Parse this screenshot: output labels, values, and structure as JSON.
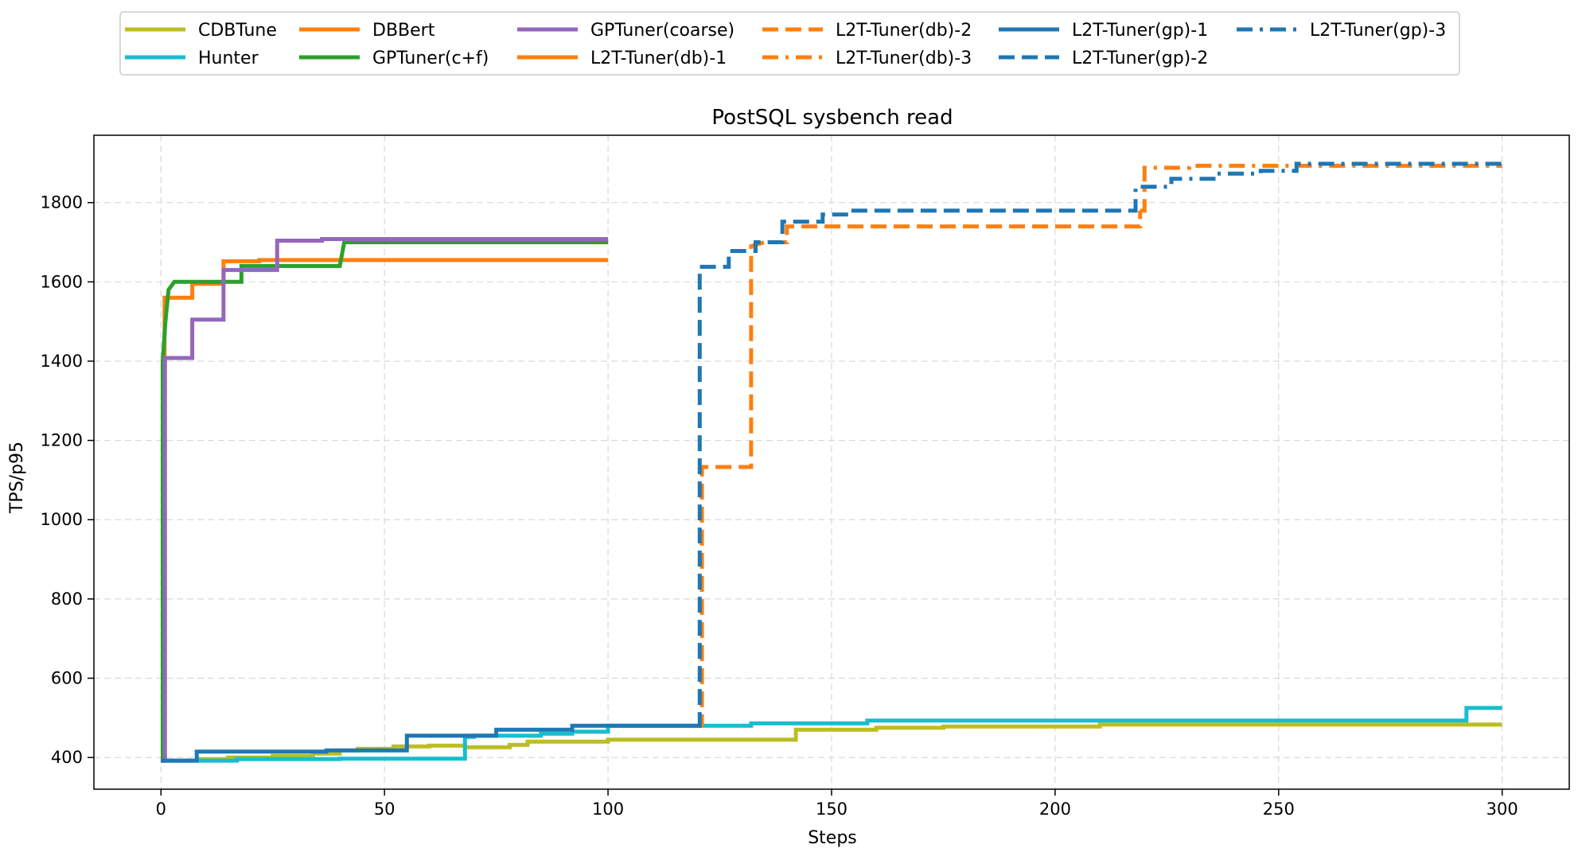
{
  "chart_data": {
    "type": "line",
    "title": "PostSQL sysbench read",
    "xlabel": "Steps",
    "ylabel": "TPS/p95",
    "xlim": [
      -15,
      315
    ],
    "ylim": [
      320,
      1970
    ],
    "xticks": [
      0,
      50,
      100,
      150,
      200,
      250,
      300
    ],
    "yticks": [
      400,
      600,
      800,
      1000,
      1200,
      1400,
      1600,
      1800
    ],
    "grid": true,
    "legend_position": "top-center",
    "series": [
      {
        "name": "CDBTune",
        "color": "#bcbd22",
        "dash": "solid",
        "points": [
          [
            0,
            392
          ],
          [
            8,
            392
          ],
          [
            8,
            396
          ],
          [
            15,
            396
          ],
          [
            15,
            400
          ],
          [
            25,
            400
          ],
          [
            25,
            404
          ],
          [
            34,
            404
          ],
          [
            34,
            410
          ],
          [
            40,
            410
          ],
          [
            40,
            418
          ],
          [
            44,
            418
          ],
          [
            44,
            422
          ],
          [
            52,
            422
          ],
          [
            52,
            428
          ],
          [
            60,
            428
          ],
          [
            60,
            430
          ],
          [
            68,
            430
          ],
          [
            68,
            426
          ],
          [
            78,
            426
          ],
          [
            78,
            432
          ],
          [
            82,
            432
          ],
          [
            82,
            440
          ],
          [
            100,
            440
          ],
          [
            100,
            445
          ],
          [
            142,
            445
          ],
          [
            142,
            470
          ],
          [
            160,
            470
          ],
          [
            160,
            475
          ],
          [
            175,
            475
          ],
          [
            175,
            478
          ],
          [
            210,
            478
          ],
          [
            210,
            483
          ],
          [
            300,
            483
          ]
        ]
      },
      {
        "name": "Hunter",
        "color": "#17becf",
        "dash": "solid",
        "points": [
          [
            0,
            392
          ],
          [
            17,
            392
          ],
          [
            17,
            396
          ],
          [
            40,
            396
          ],
          [
            40,
            397
          ],
          [
            68,
            397
          ],
          [
            68,
            452
          ],
          [
            70,
            452
          ],
          [
            70,
            455
          ],
          [
            85,
            455
          ],
          [
            85,
            460
          ],
          [
            92,
            460
          ],
          [
            92,
            465
          ],
          [
            100,
            465
          ],
          [
            100,
            480
          ],
          [
            132,
            480
          ],
          [
            132,
            486
          ],
          [
            158,
            486
          ],
          [
            158,
            493
          ],
          [
            292,
            493
          ],
          [
            292,
            525
          ],
          [
            300,
            525
          ]
        ]
      },
      {
        "name": "DBBert",
        "color": "#ff7f0e",
        "dash": "solid",
        "points": [
          [
            0,
            392
          ],
          [
            0.8,
            392
          ],
          [
            0.8,
            1560
          ],
          [
            7,
            1560
          ],
          [
            7,
            1595
          ],
          [
            14,
            1595
          ],
          [
            14,
            1652
          ],
          [
            22,
            1652
          ],
          [
            22,
            1655
          ],
          [
            100,
            1655
          ]
        ]
      },
      {
        "name": "GPTuner(c+f)",
        "color": "#2ca02c",
        "dash": "solid",
        "points": [
          [
            0,
            392
          ],
          [
            0.4,
            392
          ],
          [
            0.4,
            1400
          ],
          [
            1,
            1500
          ],
          [
            1.7,
            1580
          ],
          [
            3,
            1600
          ],
          [
            18,
            1600
          ],
          [
            18,
            1640
          ],
          [
            40,
            1640
          ],
          [
            41,
            1700
          ],
          [
            100,
            1700
          ]
        ]
      },
      {
        "name": "GPTuner(coarse)",
        "color": "#9467bd",
        "dash": "solid",
        "points": [
          [
            0,
            392
          ],
          [
            0.9,
            392
          ],
          [
            0.9,
            1408
          ],
          [
            7,
            1408
          ],
          [
            7,
            1505
          ],
          [
            14,
            1505
          ],
          [
            14,
            1630
          ],
          [
            26,
            1630
          ],
          [
            26,
            1704
          ],
          [
            36,
            1704
          ],
          [
            36,
            1708
          ],
          [
            100,
            1708
          ]
        ]
      },
      {
        "name": "L2T-Tuner(db)-1",
        "color": "#ff7f0e",
        "dash": "solid",
        "points": []
      },
      {
        "name": "L2T-Tuner(db)-2",
        "color": "#ff7f0e",
        "dash": "dashed",
        "points": [
          [
            120,
            480
          ],
          [
            121,
            480
          ],
          [
            121,
            1133
          ],
          [
            132,
            1133
          ],
          [
            132,
            1690
          ],
          [
            135,
            1700
          ],
          [
            140,
            1700
          ],
          [
            140,
            1740
          ],
          [
            219,
            1740
          ],
          [
            219,
            1780
          ]
        ]
      },
      {
        "name": "L2T-Tuner(db)-3",
        "color": "#ff7f0e",
        "dash": "dashdot",
        "points": [
          [
            219,
            1780
          ],
          [
            220,
            1780
          ],
          [
            220,
            1888
          ],
          [
            230,
            1888
          ],
          [
            230,
            1893
          ],
          [
            300,
            1893
          ]
        ]
      },
      {
        "name": "L2T-Tuner(gp)-1",
        "color": "#1f77b4",
        "dash": "solid",
        "points": [
          [
            0,
            392
          ],
          [
            8,
            392
          ],
          [
            8,
            415
          ],
          [
            37,
            415
          ],
          [
            37,
            418
          ],
          [
            55,
            418
          ],
          [
            55,
            455
          ],
          [
            75,
            455
          ],
          [
            75,
            470
          ],
          [
            92,
            470
          ],
          [
            92,
            480
          ],
          [
            120,
            480
          ]
        ]
      },
      {
        "name": "L2T-Tuner(gp)-2",
        "color": "#1f77b4",
        "dash": "dashed",
        "points": [
          [
            120,
            480
          ],
          [
            120.5,
            480
          ],
          [
            120.5,
            1638
          ],
          [
            127,
            1638
          ],
          [
            127,
            1678
          ],
          [
            133,
            1678
          ],
          [
            133,
            1700
          ],
          [
            139,
            1700
          ],
          [
            139,
            1752
          ],
          [
            148,
            1752
          ],
          [
            148,
            1770
          ],
          [
            154,
            1770
          ],
          [
            154,
            1780
          ],
          [
            217,
            1780
          ]
        ]
      },
      {
        "name": "L2T-Tuner(gp)-3",
        "color": "#1f77b4",
        "dash": "dashdot",
        "points": [
          [
            217,
            1780
          ],
          [
            218,
            1780
          ],
          [
            218,
            1840
          ],
          [
            226,
            1840
          ],
          [
            226,
            1860
          ],
          [
            236,
            1860
          ],
          [
            236,
            1873
          ],
          [
            246,
            1873
          ],
          [
            246,
            1880
          ],
          [
            254,
            1880
          ],
          [
            254,
            1898
          ],
          [
            300,
            1898
          ]
        ]
      }
    ]
  }
}
